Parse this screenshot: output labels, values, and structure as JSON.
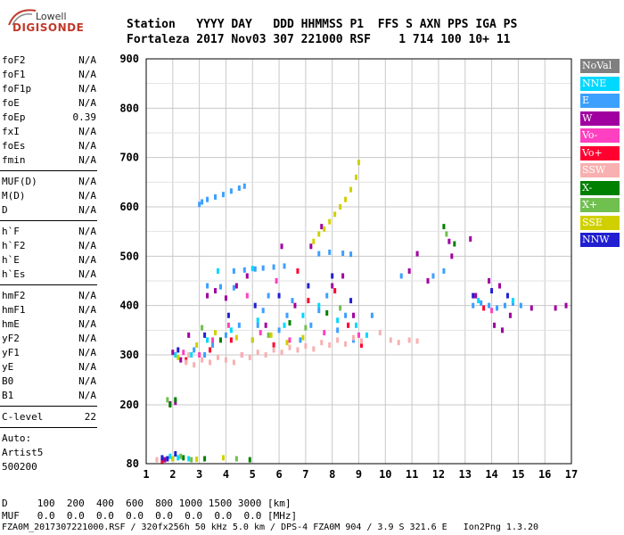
{
  "logo": {
    "line1": "Lowell",
    "line2": "DIGISONDE"
  },
  "header": {
    "row1": "Station   YYYY DAY   DDD HHMMSS P1  FFS S AXN PPS IGA PS",
    "row2": "Fortaleza 2017 Nov03 307 221000 RSF    1 714 100 10+ 11"
  },
  "params": [
    {
      "group": [
        {
          "name": "foF2",
          "value": "N/A"
        },
        {
          "name": "foF1",
          "value": "N/A"
        },
        {
          "name": "foF1p",
          "value": "N/A"
        },
        {
          "name": "foE",
          "value": "N/A"
        },
        {
          "name": "foEp",
          "value": "0.39"
        },
        {
          "name": "fxI",
          "value": "N/A"
        },
        {
          "name": "foEs",
          "value": "N/A"
        },
        {
          "name": "fmin",
          "value": "N/A"
        }
      ]
    },
    {
      "group": [
        {
          "name": "MUF(D)",
          "value": "N/A"
        },
        {
          "name": "M(D)",
          "value": "N/A"
        },
        {
          "name": "D",
          "value": "N/A"
        }
      ]
    },
    {
      "group": [
        {
          "name": "h`F",
          "value": "N/A"
        },
        {
          "name": "h`F2",
          "value": "N/A"
        },
        {
          "name": "h`E",
          "value": "N/A"
        },
        {
          "name": "h`Es",
          "value": "N/A"
        }
      ]
    },
    {
      "group": [
        {
          "name": "hmF2",
          "value": "N/A"
        },
        {
          "name": "hmF1",
          "value": "N/A"
        },
        {
          "name": "hmE",
          "value": "N/A"
        },
        {
          "name": "yF2",
          "value": "N/A"
        },
        {
          "name": "yF1",
          "value": "N/A"
        },
        {
          "name": "yE",
          "value": "N/A"
        },
        {
          "name": "B0",
          "value": "N/A"
        },
        {
          "name": "B1",
          "value": "N/A"
        }
      ]
    },
    {
      "group": [
        {
          "name": "C-level",
          "value": "22"
        }
      ]
    }
  ],
  "autoscale": {
    "line1": "Auto:",
    "line2": "Artist5",
    "line3": "500200"
  },
  "legend": [
    {
      "label": "NoVal",
      "color": "#808080"
    },
    {
      "label": "NNE",
      "color": "#00d8ff"
    },
    {
      "label": "E",
      "color": "#3ca0ff"
    },
    {
      "label": "W",
      "color": "#a000a0"
    },
    {
      "label": "Vo-",
      "color": "#ff40c0"
    },
    {
      "label": "Vo+",
      "color": "#ff0030"
    },
    {
      "label": "SSW",
      "color": "#f8b0b0"
    },
    {
      "label": "X-",
      "color": "#008000"
    },
    {
      "label": "X+",
      "color": "#70c050"
    },
    {
      "label": "SSE",
      "color": "#d0d000"
    },
    {
      "label": "NNW",
      "color": "#2020d0"
    }
  ],
  "footer": {
    "d_row": "D     100  200  400  600  800 1000 1500 3000 [km]",
    "muf_row": "MUF   0.0  0.0  0.0  0.0  0.0  0.0  0.0  0.0 [MHz]",
    "file_row": "FZA0M_2017307221000.RSF / 320fx256h 50 kHz 5.0 km / DPS-4 FZA0M 904 / 3.9 S 321.6 E   Ion2Png 1.3.20"
  },
  "chart_data": {
    "type": "scatter",
    "xlim": [
      1,
      17
    ],
    "ylim": [
      80,
      900
    ],
    "xticks": [
      1,
      2,
      3,
      4,
      5,
      6,
      7,
      8,
      9,
      10,
      11,
      12,
      13,
      14,
      15,
      16,
      17
    ],
    "yticks": [
      80,
      200,
      300,
      400,
      500,
      600,
      700,
      800,
      900
    ],
    "grid": true,
    "series": [
      {
        "name": "E",
        "points": [
          [
            3.0,
            605
          ],
          [
            3.1,
            610
          ],
          [
            3.3,
            615
          ],
          [
            3.6,
            620
          ],
          [
            3.9,
            625
          ],
          [
            4.2,
            632
          ],
          [
            4.5,
            638
          ],
          [
            4.7,
            642
          ],
          [
            4.3,
            470
          ],
          [
            4.7,
            472
          ],
          [
            5.1,
            474
          ],
          [
            5.4,
            476
          ],
          [
            5.8,
            478
          ],
          [
            6.2,
            480
          ],
          [
            3.3,
            440
          ],
          [
            3.8,
            438
          ],
          [
            4.3,
            436
          ],
          [
            7.5,
            505
          ],
          [
            7.9,
            508
          ],
          [
            8.4,
            506
          ],
          [
            8.7,
            504
          ],
          [
            13.3,
            400
          ],
          [
            13.6,
            405
          ],
          [
            13.9,
            400
          ],
          [
            14.2,
            395
          ],
          [
            14.5,
            400
          ],
          [
            14.8,
            405
          ],
          [
            15.1,
            400
          ],
          [
            5.0,
            330
          ],
          [
            5.2,
            360
          ],
          [
            5.4,
            390
          ],
          [
            5.6,
            420
          ],
          [
            6.0,
            350
          ],
          [
            6.3,
            380
          ],
          [
            6.5,
            410
          ],
          [
            6.8,
            330
          ],
          [
            7.2,
            360
          ],
          [
            7.5,
            390
          ],
          [
            7.8,
            420
          ],
          [
            8.2,
            350
          ],
          [
            8.5,
            380
          ],
          [
            8.8,
            330
          ],
          [
            3.5,
            320
          ],
          [
            4.0,
            340
          ],
          [
            4.5,
            360
          ],
          [
            3.2,
            300
          ],
          [
            2.8,
            310
          ],
          [
            9.5,
            380
          ],
          [
            10.6,
            460
          ],
          [
            11.8,
            460
          ],
          [
            12.2,
            470
          ]
        ]
      },
      {
        "name": "NNE",
        "points": [
          [
            2.1,
            300
          ],
          [
            2.7,
            300
          ],
          [
            3.3,
            330
          ],
          [
            4.2,
            350
          ],
          [
            5.2,
            370
          ],
          [
            6.2,
            360
          ],
          [
            6.9,
            380
          ],
          [
            7.5,
            400
          ],
          [
            8.2,
            370
          ],
          [
            8.9,
            360
          ],
          [
            3.7,
            470
          ],
          [
            5.0,
            475
          ],
          [
            13.5,
            410
          ],
          [
            14.8,
            410
          ],
          [
            1.9,
            95
          ],
          [
            2.2,
            92
          ],
          [
            2.6,
            90
          ],
          [
            9.3,
            340
          ]
        ]
      },
      {
        "name": "W",
        "points": [
          [
            2.0,
            305
          ],
          [
            2.3,
            290
          ],
          [
            2.6,
            340
          ],
          [
            3.3,
            420
          ],
          [
            3.6,
            430
          ],
          [
            4.0,
            415
          ],
          [
            4.4,
            440
          ],
          [
            4.8,
            460
          ],
          [
            5.5,
            360
          ],
          [
            6.1,
            520
          ],
          [
            6.6,
            400
          ],
          [
            7.2,
            520
          ],
          [
            7.6,
            560
          ],
          [
            8.0,
            440
          ],
          [
            8.4,
            460
          ],
          [
            8.8,
            380
          ],
          [
            12.4,
            530
          ],
          [
            12.5,
            500
          ],
          [
            13.2,
            535
          ],
          [
            13.9,
            450
          ],
          [
            14.1,
            360
          ],
          [
            14.4,
            350
          ],
          [
            14.7,
            380
          ],
          [
            14.3,
            440
          ],
          [
            15.5,
            395
          ],
          [
            16.4,
            395
          ],
          [
            16.8,
            400
          ],
          [
            10.9,
            470
          ],
          [
            11.2,
            505
          ],
          [
            11.6,
            450
          ],
          [
            13.4,
            420
          ],
          [
            1.9,
            202
          ],
          [
            2.1,
            205
          ],
          [
            1.7,
            88
          ]
        ]
      },
      {
        "name": "Vo-",
        "points": [
          [
            3.0,
            300
          ],
          [
            3.5,
            330
          ],
          [
            4.1,
            360
          ],
          [
            4.6,
            300
          ],
          [
            5.3,
            345
          ],
          [
            6.4,
            330
          ],
          [
            7.7,
            345
          ],
          [
            9.0,
            340
          ],
          [
            2.4,
            305
          ],
          [
            14.0,
            390
          ],
          [
            4.8,
            420
          ],
          [
            5.9,
            450
          ]
        ]
      },
      {
        "name": "Vo+",
        "points": [
          [
            2.5,
            290
          ],
          [
            3.4,
            310
          ],
          [
            4.2,
            330
          ],
          [
            5.8,
            320
          ],
          [
            7.1,
            410
          ],
          [
            8.1,
            430
          ],
          [
            8.6,
            360
          ],
          [
            9.1,
            320
          ],
          [
            1.6,
            86
          ],
          [
            13.7,
            395
          ],
          [
            6.7,
            470
          ]
        ]
      },
      {
        "name": "SSW",
        "points": [
          [
            2.5,
            285
          ],
          [
            2.8,
            280
          ],
          [
            3.1,
            290
          ],
          [
            3.4,
            285
          ],
          [
            3.7,
            295
          ],
          [
            4.0,
            290
          ],
          [
            4.3,
            285
          ],
          [
            4.6,
            300
          ],
          [
            4.9,
            295
          ],
          [
            5.2,
            305
          ],
          [
            5.5,
            300
          ],
          [
            5.8,
            310
          ],
          [
            6.1,
            305
          ],
          [
            6.4,
            315
          ],
          [
            6.7,
            310
          ],
          [
            7.0,
            318
          ],
          [
            7.3,
            312
          ],
          [
            7.6,
            325
          ],
          [
            7.9,
            320
          ],
          [
            8.2,
            330
          ],
          [
            8.5,
            322
          ],
          [
            8.8,
            335
          ],
          [
            9.1,
            328
          ],
          [
            10.2,
            330
          ],
          [
            10.5,
            325
          ],
          [
            10.9,
            330
          ],
          [
            11.2,
            328
          ],
          [
            9.8,
            345
          ],
          [
            1.4,
            88
          ],
          [
            2.6,
            300
          ]
        ]
      },
      {
        "name": "X-",
        "points": [
          [
            1.9,
            200
          ],
          [
            2.1,
            210
          ],
          [
            2.0,
            90
          ],
          [
            2.4,
            92
          ],
          [
            3.2,
            90
          ],
          [
            4.9,
            88
          ],
          [
            12.2,
            560
          ],
          [
            12.6,
            525
          ],
          [
            3.8,
            330
          ],
          [
            6.4,
            365
          ],
          [
            7.8,
            385
          ]
        ]
      },
      {
        "name": "X+",
        "points": [
          [
            1.8,
            210
          ],
          [
            2.3,
            95
          ],
          [
            2.7,
            88
          ],
          [
            4.4,
            90
          ],
          [
            12.3,
            545
          ],
          [
            5.6,
            340
          ],
          [
            7.0,
            355
          ],
          [
            8.3,
            395
          ],
          [
            3.1,
            355
          ]
        ]
      },
      {
        "name": "SSE",
        "points": [
          [
            2.2,
            295
          ],
          [
            2.9,
            320
          ],
          [
            3.6,
            345
          ],
          [
            4.4,
            335
          ],
          [
            5.0,
            330
          ],
          [
            5.7,
            340
          ],
          [
            6.3,
            325
          ],
          [
            6.9,
            335
          ],
          [
            7.3,
            530
          ],
          [
            7.5,
            545
          ],
          [
            7.7,
            555
          ],
          [
            7.9,
            570
          ],
          [
            8.1,
            585
          ],
          [
            8.3,
            600
          ],
          [
            8.5,
            615
          ],
          [
            8.7,
            635
          ],
          [
            8.9,
            660
          ],
          [
            9.0,
            690
          ],
          [
            2.0,
            90
          ],
          [
            2.9,
            89
          ],
          [
            3.9,
            92
          ]
        ]
      },
      {
        "name": "NNW",
        "points": [
          [
            2.2,
            310
          ],
          [
            3.2,
            340
          ],
          [
            4.1,
            380
          ],
          [
            5.1,
            400
          ],
          [
            6.0,
            420
          ],
          [
            7.1,
            440
          ],
          [
            8.0,
            460
          ],
          [
            8.7,
            410
          ],
          [
            13.3,
            420
          ],
          [
            14.0,
            430
          ],
          [
            14.6,
            420
          ],
          [
            2.1,
            100
          ],
          [
            1.6,
            92
          ],
          [
            1.8,
            90
          ]
        ]
      }
    ]
  }
}
